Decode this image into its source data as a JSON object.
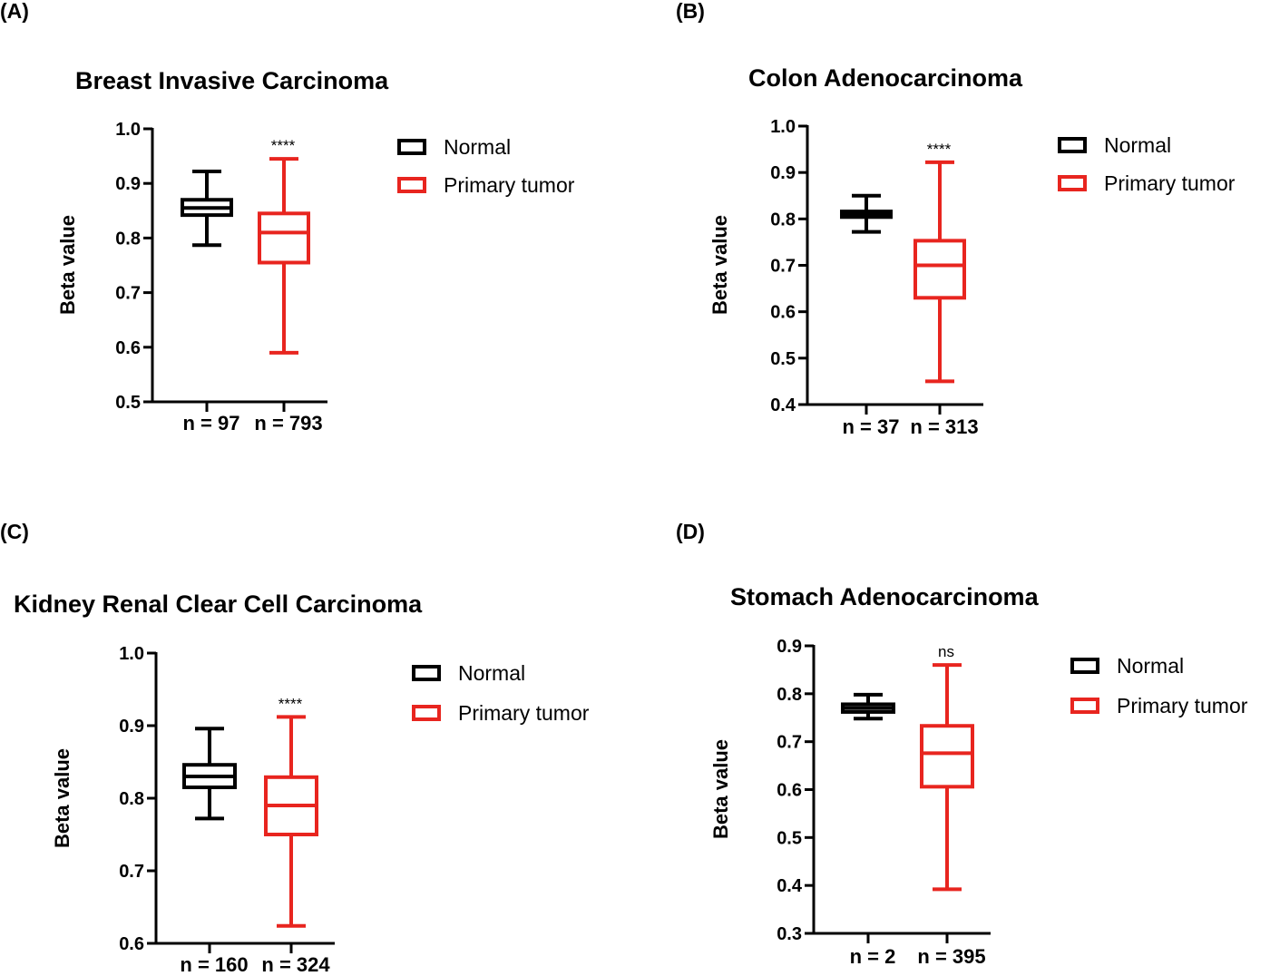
{
  "colors": {
    "normal": "#000000",
    "tumor": "#e8251f"
  },
  "chart_data": [
    {
      "type": "box",
      "panel": "(A)",
      "title": "Breast Invasive Carcinoma",
      "ylabel": "Beta value",
      "ylim": [
        0.5,
        1.0
      ],
      "yticks": [
        "0.5",
        "0.6",
        "0.7",
        "0.8",
        "0.9",
        "1.0"
      ],
      "categories": [
        "n = 97",
        "n = 793"
      ],
      "legend": [
        "Normal",
        "Primary tumor"
      ],
      "significance": "****",
      "series": [
        {
          "name": "Normal",
          "min": 0.787,
          "q1": 0.842,
          "median": 0.855,
          "q3": 0.87,
          "max": 0.922
        },
        {
          "name": "Primary tumor",
          "min": 0.59,
          "q1": 0.755,
          "median": 0.81,
          "q3": 0.845,
          "max": 0.945
        }
      ]
    },
    {
      "type": "box",
      "panel": "(B)",
      "title": "Colon Adenocarcinoma",
      "ylabel": "Beta value",
      "ylim": [
        0.4,
        1.0
      ],
      "yticks": [
        "0.4",
        "0.5",
        "0.6",
        "0.7",
        "0.8",
        "0.9",
        "1.0"
      ],
      "categories": [
        "n = 37",
        "n = 313"
      ],
      "legend": [
        "Normal",
        "Primary tumor"
      ],
      "significance": "****",
      "series": [
        {
          "name": "Normal",
          "min": 0.772,
          "q1": 0.804,
          "median": 0.81,
          "q3": 0.816,
          "max": 0.85
        },
        {
          "name": "Primary tumor",
          "min": 0.45,
          "q1": 0.63,
          "median": 0.7,
          "q3": 0.753,
          "max": 0.922
        }
      ]
    },
    {
      "type": "box",
      "panel": "(C)",
      "title": "Kidney Renal Clear Cell Carcinoma",
      "ylabel": "Beta value",
      "ylim": [
        0.6,
        1.0
      ],
      "yticks": [
        "0.6",
        "0.7",
        "0.8",
        "0.9",
        "1.0"
      ],
      "categories": [
        "n = 160",
        "n = 324"
      ],
      "legend": [
        "Normal",
        "Primary tumor"
      ],
      "significance": "****",
      "series": [
        {
          "name": "Normal",
          "min": 0.772,
          "q1": 0.815,
          "median": 0.83,
          "q3": 0.846,
          "max": 0.896
        },
        {
          "name": "Primary tumor",
          "min": 0.624,
          "q1": 0.75,
          "median": 0.79,
          "q3": 0.829,
          "max": 0.912
        }
      ]
    },
    {
      "type": "box",
      "panel": "(D)",
      "title": "Stomach Adenocarcinoma",
      "ylabel": "Beta value",
      "ylim": [
        0.3,
        0.9
      ],
      "yticks": [
        "0.3",
        "0.4",
        "0.5",
        "0.6",
        "0.7",
        "0.8",
        "0.9"
      ],
      "categories": [
        "n = 2",
        "n = 395"
      ],
      "legend": [
        "Normal",
        "Primary tumor"
      ],
      "significance": "ns",
      "series": [
        {
          "name": "Normal",
          "min": 0.748,
          "q1": 0.762,
          "median": 0.77,
          "q3": 0.778,
          "max": 0.798
        },
        {
          "name": "Primary tumor",
          "min": 0.392,
          "q1": 0.606,
          "median": 0.676,
          "q3": 0.733,
          "max": 0.86
        }
      ]
    }
  ]
}
